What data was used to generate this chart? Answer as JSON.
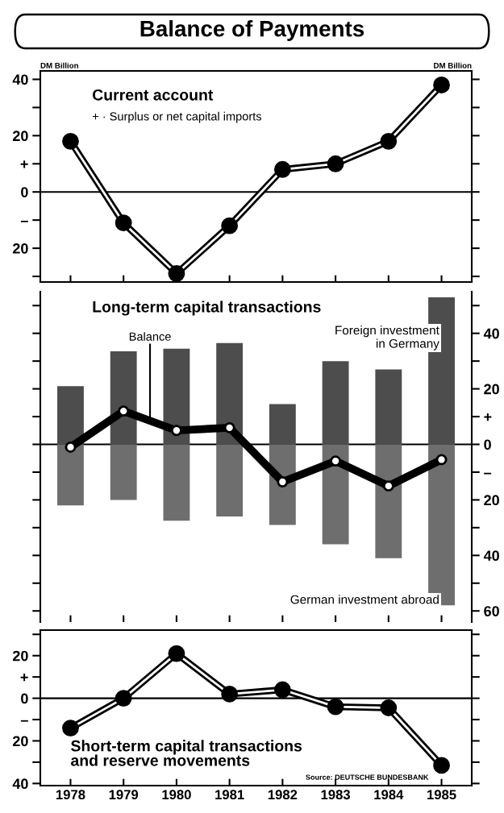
{
  "chart_data": [
    {
      "type": "line",
      "title": "Balance of Payments",
      "subtitle": "Current account",
      "categories": [
        "1978",
        "1979",
        "1980",
        "1981",
        "1982",
        "1983",
        "1984",
        "1985"
      ],
      "series": [
        {
          "color": "#000000",
          "values": [
            18,
            -11,
            -29,
            -12,
            8,
            10,
            18,
            38
          ]
        }
      ],
      "marker": "circle",
      "ylim": [
        -32,
        43
      ],
      "yticks": [
        {
          "value": -30,
          "label": null
        },
        {
          "value": -20,
          "label": "20"
        },
        {
          "value": -10,
          "label": "–"
        },
        0,
        {
          "value": 10,
          "label": "+"
        },
        20,
        {
          "value": 30,
          "label": null
        },
        40
      ],
      "tick_labels": "y",
      "annotations": [
        "DM Billion",
        "DM Billion",
        "+ · Surplus or net capital imports"
      ]
    },
    {
      "type": "bar",
      "title": "Long-term capital transactions",
      "categories": [
        "1978",
        "1979",
        "1980",
        "1981",
        "1982",
        "1983",
        "1984",
        "1985"
      ],
      "stacked": true,
      "series": [
        {
          "name": "Foreign investment\nin Germany",
          "color": "#4d4d4d",
          "values": [
            21,
            33.5,
            34.5,
            36.5,
            14.5,
            30,
            27,
            53
          ]
        },
        {
          "name": "German investment abroad",
          "color": "#6e6e6e",
          "values": [
            -22,
            -20,
            -27.5,
            -26,
            -29,
            -36,
            -41,
            -58
          ]
        },
        {
          "name": "Balance",
          "type": "line",
          "color": "#000000",
          "marker": "circle",
          "values": [
            -1,
            12,
            5,
            6,
            -13.5,
            -6,
            -15,
            -5.5
          ]
        }
      ],
      "ylim": [
        -64,
        55
      ],
      "yticks": [
        {
          "value": -60,
          "label": "60"
        },
        {
          "value": -50,
          "label": null
        },
        {
          "value": -40,
          "label": "40"
        },
        {
          "value": -30,
          "label": null
        },
        {
          "value": -20,
          "label": "20"
        },
        {
          "value": -10,
          "label": "–"
        },
        0,
        {
          "value": 10,
          "label": "+"
        },
        20,
        {
          "value": 30,
          "label": null
        },
        40,
        {
          "value": 50,
          "label": null
        }
      ],
      "tick_labels": "y"
    },
    {
      "type": "line",
      "title": "Short-term capital transactions\nand reserve movements",
      "categories": [
        "1978",
        "1979",
        "1980",
        "1981",
        "1982",
        "1983",
        "1984",
        "1985"
      ],
      "series": [
        {
          "color": "#000000",
          "values": [
            -14,
            0,
            21,
            2,
            4,
            -4,
            -4.5,
            -31.5
          ]
        }
      ],
      "marker": "circle",
      "ylim": [
        -41,
        32
      ],
      "yticks": [
        {
          "value": -40,
          "label": "40"
        },
        {
          "value": -30,
          "label": null
        },
        {
          "value": -20,
          "label": "20"
        },
        {
          "value": -10,
          "label": "–"
        },
        0,
        {
          "value": 10,
          "label": "+"
        },
        20,
        {
          "value": 30,
          "label": null
        }
      ],
      "annotations": [
        "Source: DEUTSCHE BUNDESBANK"
      ]
    }
  ]
}
